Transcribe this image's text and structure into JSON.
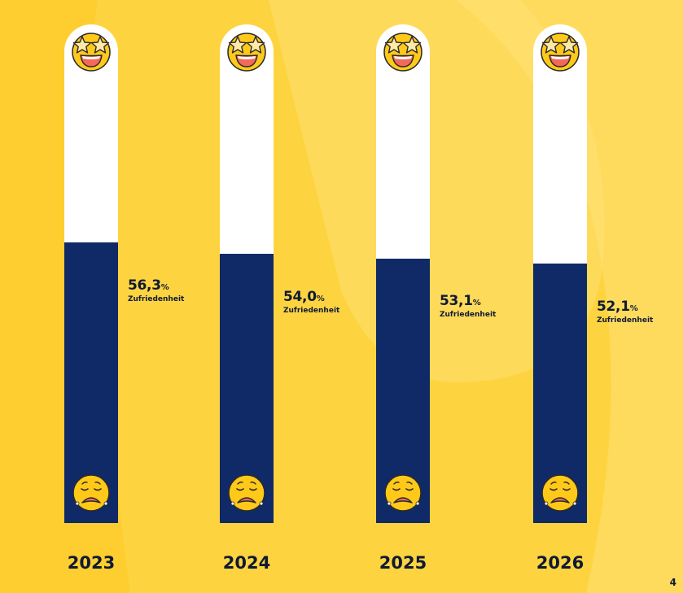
{
  "colors": {
    "background": "#FDD440",
    "background_shape": "#FFE27A",
    "bar_empty": "#FFFFFF",
    "bar_fill": "#0F2A66",
    "text": "#0F1A33",
    "emoji_yellow": "#FFC91A",
    "emoji_mouth": "#F2685A"
  },
  "icons": {
    "top": "star-struck-emoji-icon",
    "bottom": "sad-face-emoji-icon"
  },
  "chart_data": {
    "type": "bar",
    "orientation": "vertical",
    "title": "",
    "xlabel": "",
    "ylabel": "",
    "ylim": [
      0,
      100
    ],
    "categories": [
      "2023",
      "2024",
      "2025",
      "2026"
    ],
    "values": [
      56.3,
      54.0,
      53.1,
      52.1
    ],
    "value_labels": [
      "56,3",
      "54,0",
      "53,1",
      "52,1"
    ],
    "unit": "%",
    "caption": "Zufriedenheit"
  },
  "page_number": "4"
}
